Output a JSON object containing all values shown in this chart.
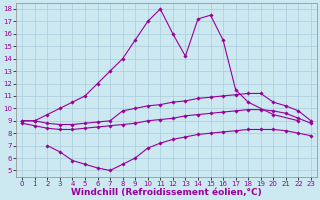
{
  "xlabel": "Windchill (Refroidissement éolien,°C)",
  "background_color": "#cce8f0",
  "grid_color": "#aaccdd",
  "line_color": "#990099",
  "xlim": [
    -0.5,
    23.5
  ],
  "ylim": [
    4.5,
    18.5
  ],
  "xticks": [
    0,
    1,
    2,
    3,
    4,
    5,
    6,
    7,
    8,
    9,
    10,
    11,
    12,
    13,
    14,
    15,
    16,
    17,
    18,
    19,
    20,
    21,
    22,
    23
  ],
  "yticks": [
    5,
    6,
    7,
    8,
    9,
    10,
    11,
    12,
    13,
    14,
    15,
    16,
    17,
    18
  ],
  "series": {
    "top": {
      "x": [
        0,
        1,
        2,
        3,
        4,
        5,
        6,
        7,
        8,
        9,
        10,
        11,
        12,
        13,
        14,
        15,
        16,
        17,
        18,
        20,
        22
      ],
      "y": [
        9.0,
        9.0,
        9.5,
        10.0,
        10.5,
        11.0,
        12.0,
        13.0,
        14.0,
        15.5,
        17.0,
        18.0,
        16.0,
        14.2,
        17.2,
        17.5,
        15.5,
        11.5,
        10.5,
        9.5,
        9.0
      ]
    },
    "upper_mid": {
      "x": [
        0,
        1,
        2,
        3,
        4,
        5,
        6,
        7,
        8,
        9,
        10,
        11,
        12,
        13,
        14,
        15,
        16,
        17,
        18,
        19,
        20,
        21,
        22,
        23
      ],
      "y": [
        9.0,
        9.0,
        8.8,
        8.7,
        8.7,
        8.8,
        8.9,
        9.0,
        9.8,
        10.0,
        10.2,
        10.3,
        10.5,
        10.6,
        10.8,
        10.9,
        11.0,
        11.1,
        11.2,
        11.2,
        10.5,
        10.2,
        9.8,
        9.0
      ]
    },
    "lower_mid": {
      "x": [
        0,
        1,
        2,
        3,
        4,
        5,
        6,
        7,
        8,
        9,
        10,
        11,
        12,
        13,
        14,
        15,
        16,
        17,
        18,
        19,
        20,
        21,
        22,
        23
      ],
      "y": [
        8.8,
        8.6,
        8.4,
        8.3,
        8.3,
        8.4,
        8.5,
        8.6,
        8.7,
        8.8,
        9.0,
        9.1,
        9.2,
        9.4,
        9.5,
        9.6,
        9.7,
        9.8,
        9.9,
        9.9,
        9.8,
        9.6,
        9.2,
        8.8
      ]
    },
    "bottom": {
      "x": [
        2,
        3,
        4,
        5,
        6,
        7,
        8,
        9,
        10,
        11,
        12,
        13,
        14,
        15,
        16,
        17,
        18,
        19,
        20,
        21,
        22,
        23
      ],
      "y": [
        7.0,
        6.5,
        5.8,
        5.5,
        5.2,
        5.0,
        5.5,
        6.0,
        6.8,
        7.2,
        7.5,
        7.7,
        7.9,
        8.0,
        8.1,
        8.2,
        8.3,
        8.3,
        8.3,
        8.2,
        8.0,
        7.8
      ]
    }
  },
  "line_width": 0.8,
  "marker": "D",
  "marker_size": 1.8,
  "tick_fontsize": 5,
  "label_fontsize": 6.5
}
